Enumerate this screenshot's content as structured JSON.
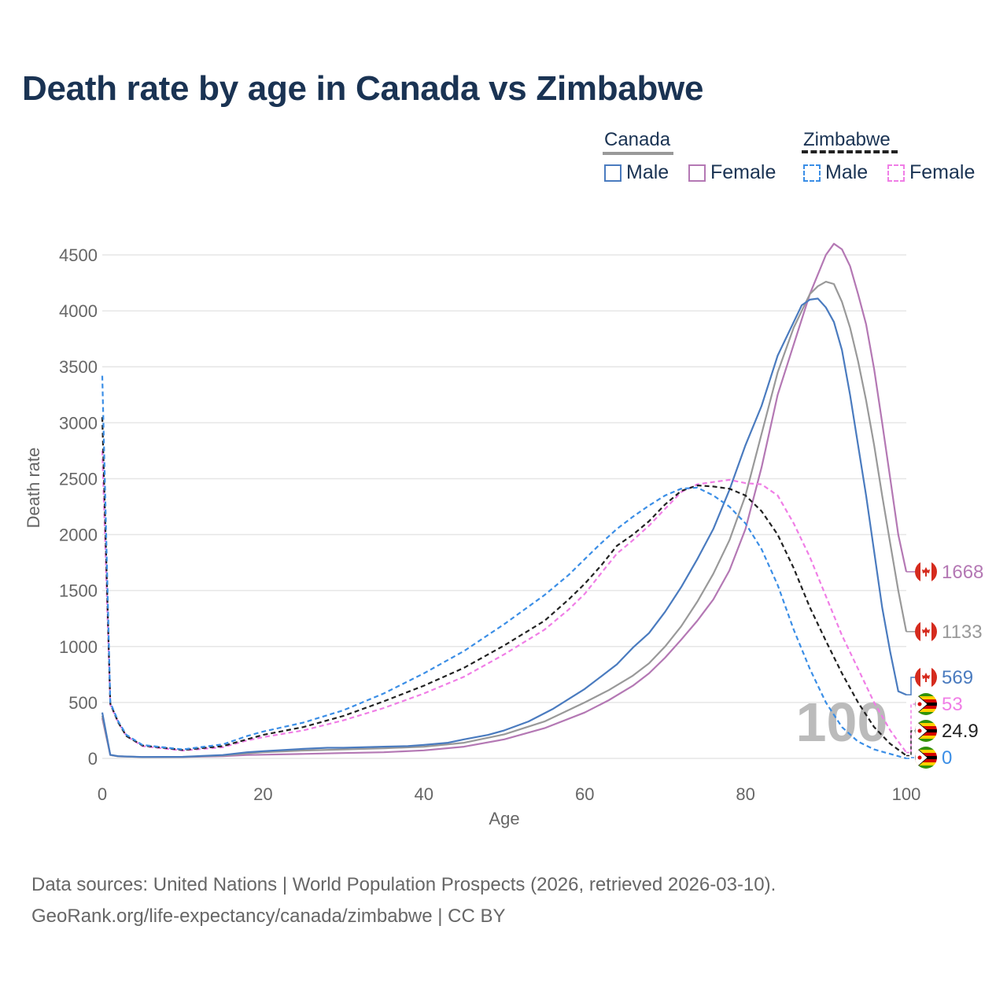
{
  "title": "Death rate by age in Canada vs Zimbabwe",
  "legend": {
    "groups": [
      {
        "name": "Canada",
        "style": "solid",
        "items": [
          {
            "label": "Male",
            "color": "#4a7bbf"
          },
          {
            "label": "Female",
            "color": "#b478b4"
          }
        ]
      },
      {
        "name": "Zimbabwe",
        "style": "dashed",
        "items": [
          {
            "label": "Male",
            "color": "#3b8ee6"
          },
          {
            "label": "Female",
            "color": "#f07ee6"
          }
        ]
      }
    ]
  },
  "source": {
    "line1": "Data sources: United Nations | World Population Prospects (2026, retrieved 2026-03-10).",
    "line2": "GeoRank.org/life-expectancy/canada/zimbabwe | CC BY"
  },
  "chart_data": {
    "type": "line",
    "title": "Death rate by age in Canada vs Zimbabwe",
    "xlabel": "Age",
    "ylabel": "Death rate",
    "xlim": [
      0,
      100
    ],
    "ylim": [
      0,
      4500
    ],
    "xticks": [
      0,
      20,
      40,
      60,
      80,
      100
    ],
    "yticks": [
      0,
      500,
      1000,
      1500,
      2000,
      2500,
      3000,
      3500,
      4000,
      4500
    ],
    "watermark": "100",
    "series": [
      {
        "name": "Canada Female",
        "color": "#b478b4",
        "dash": false,
        "end_label": "1668",
        "flag": "canada",
        "points": [
          [
            0,
            360
          ],
          [
            1,
            30
          ],
          [
            2,
            18
          ],
          [
            5,
            12
          ],
          [
            10,
            12
          ],
          [
            15,
            20
          ],
          [
            18,
            30
          ],
          [
            20,
            33
          ],
          [
            25,
            40
          ],
          [
            30,
            48
          ],
          [
            35,
            55
          ],
          [
            40,
            72
          ],
          [
            45,
            105
          ],
          [
            50,
            170
          ],
          [
            55,
            270
          ],
          [
            60,
            410
          ],
          [
            63,
            520
          ],
          [
            66,
            650
          ],
          [
            68,
            760
          ],
          [
            70,
            900
          ],
          [
            72,
            1060
          ],
          [
            74,
            1230
          ],
          [
            76,
            1420
          ],
          [
            78,
            1680
          ],
          [
            80,
            2050
          ],
          [
            82,
            2600
          ],
          [
            84,
            3250
          ],
          [
            86,
            3700
          ],
          [
            88,
            4150
          ],
          [
            90,
            4500
          ],
          [
            91,
            4600
          ],
          [
            92,
            4550
          ],
          [
            93,
            4400
          ],
          [
            94,
            4150
          ],
          [
            95,
            3880
          ],
          [
            96,
            3480
          ],
          [
            97,
            3000
          ],
          [
            98,
            2500
          ],
          [
            99,
            2000
          ],
          [
            100,
            1668
          ]
        ]
      },
      {
        "name": "Canada Both",
        "color": "#999999",
        "dash": false,
        "end_label": "1133",
        "flag": "canada",
        "points": [
          [
            0,
            380
          ],
          [
            1,
            30
          ],
          [
            2,
            18
          ],
          [
            5,
            12
          ],
          [
            10,
            13
          ],
          [
            15,
            25
          ],
          [
            18,
            45
          ],
          [
            20,
            55
          ],
          [
            25,
            70
          ],
          [
            30,
            80
          ],
          [
            35,
            90
          ],
          [
            40,
            105
          ],
          [
            45,
            140
          ],
          [
            50,
            215
          ],
          [
            55,
            330
          ],
          [
            60,
            500
          ],
          [
            63,
            610
          ],
          [
            66,
            740
          ],
          [
            68,
            850
          ],
          [
            70,
            1000
          ],
          [
            72,
            1180
          ],
          [
            74,
            1400
          ],
          [
            76,
            1650
          ],
          [
            78,
            1950
          ],
          [
            80,
            2350
          ],
          [
            82,
            2900
          ],
          [
            84,
            3450
          ],
          [
            86,
            3850
          ],
          [
            88,
            4150
          ],
          [
            89,
            4220
          ],
          [
            90,
            4260
          ],
          [
            91,
            4240
          ],
          [
            92,
            4080
          ],
          [
            93,
            3850
          ],
          [
            94,
            3550
          ],
          [
            95,
            3200
          ],
          [
            96,
            2800
          ],
          [
            97,
            2350
          ],
          [
            98,
            1920
          ],
          [
            99,
            1500
          ],
          [
            100,
            1133
          ]
        ]
      },
      {
        "name": "Canada Male",
        "color": "#4a7bbf",
        "dash": false,
        "end_label": "569",
        "flag": "canada",
        "points": [
          [
            0,
            410
          ],
          [
            1,
            32
          ],
          [
            2,
            20
          ],
          [
            5,
            13
          ],
          [
            10,
            14
          ],
          [
            15,
            30
          ],
          [
            18,
            55
          ],
          [
            20,
            65
          ],
          [
            25,
            85
          ],
          [
            28,
            95
          ],
          [
            30,
            95
          ],
          [
            35,
            105
          ],
          [
            38,
            110
          ],
          [
            40,
            120
          ],
          [
            43,
            140
          ],
          [
            45,
            170
          ],
          [
            48,
            210
          ],
          [
            50,
            250
          ],
          [
            53,
            330
          ],
          [
            56,
            440
          ],
          [
            58,
            530
          ],
          [
            60,
            620
          ],
          [
            62,
            730
          ],
          [
            64,
            840
          ],
          [
            66,
            990
          ],
          [
            68,
            1120
          ],
          [
            70,
            1310
          ],
          [
            72,
            1530
          ],
          [
            74,
            1780
          ],
          [
            76,
            2050
          ],
          [
            78,
            2400
          ],
          [
            80,
            2800
          ],
          [
            82,
            3150
          ],
          [
            84,
            3600
          ],
          [
            86,
            3900
          ],
          [
            87,
            4050
          ],
          [
            88,
            4100
          ],
          [
            89,
            4110
          ],
          [
            90,
            4030
          ],
          [
            91,
            3900
          ],
          [
            92,
            3650
          ],
          [
            93,
            3250
          ],
          [
            94,
            2800
          ],
          [
            95,
            2350
          ],
          [
            96,
            1850
          ],
          [
            97,
            1350
          ],
          [
            98,
            950
          ],
          [
            99,
            600
          ],
          [
            100,
            569
          ]
        ]
      },
      {
        "name": "Zimbabwe Female",
        "color": "#f07ee6",
        "dash": true,
        "end_label": "53",
        "flag": "zimbabwe",
        "points": [
          [
            0,
            2750
          ],
          [
            1,
            480
          ],
          [
            2,
            320
          ],
          [
            3,
            200
          ],
          [
            5,
            110
          ],
          [
            10,
            70
          ],
          [
            15,
            100
          ],
          [
            18,
            160
          ],
          [
            20,
            190
          ],
          [
            25,
            250
          ],
          [
            30,
            340
          ],
          [
            35,
            450
          ],
          [
            40,
            580
          ],
          [
            45,
            730
          ],
          [
            50,
            930
          ],
          [
            55,
            1150
          ],
          [
            58,
            1330
          ],
          [
            60,
            1470
          ],
          [
            62,
            1650
          ],
          [
            64,
            1830
          ],
          [
            66,
            1950
          ],
          [
            68,
            2080
          ],
          [
            70,
            2230
          ],
          [
            72,
            2380
          ],
          [
            74,
            2450
          ],
          [
            76,
            2470
          ],
          [
            78,
            2490
          ],
          [
            80,
            2460
          ],
          [
            82,
            2450
          ],
          [
            84,
            2350
          ],
          [
            86,
            2100
          ],
          [
            88,
            1800
          ],
          [
            90,
            1450
          ],
          [
            92,
            1100
          ],
          [
            94,
            800
          ],
          [
            96,
            500
          ],
          [
            98,
            250
          ],
          [
            100,
            53
          ]
        ]
      },
      {
        "name": "Zimbabwe Both",
        "color": "#222222",
        "dash": true,
        "end_label": "24.9",
        "flag": "zimbabwe",
        "points": [
          [
            0,
            3050
          ],
          [
            1,
            490
          ],
          [
            2,
            320
          ],
          [
            3,
            200
          ],
          [
            5,
            115
          ],
          [
            10,
            75
          ],
          [
            15,
            110
          ],
          [
            18,
            170
          ],
          [
            20,
            210
          ],
          [
            25,
            280
          ],
          [
            30,
            380
          ],
          [
            35,
            510
          ],
          [
            40,
            650
          ],
          [
            45,
            810
          ],
          [
            50,
            1010
          ],
          [
            55,
            1230
          ],
          [
            58,
            1420
          ],
          [
            60,
            1560
          ],
          [
            62,
            1720
          ],
          [
            64,
            1900
          ],
          [
            66,
            2000
          ],
          [
            68,
            2120
          ],
          [
            70,
            2270
          ],
          [
            72,
            2390
          ],
          [
            74,
            2440
          ],
          [
            76,
            2430
          ],
          [
            78,
            2410
          ],
          [
            80,
            2350
          ],
          [
            82,
            2210
          ],
          [
            84,
            2000
          ],
          [
            86,
            1700
          ],
          [
            88,
            1350
          ],
          [
            90,
            1050
          ],
          [
            92,
            760
          ],
          [
            94,
            500
          ],
          [
            96,
            280
          ],
          [
            98,
            130
          ],
          [
            100,
            25
          ]
        ]
      },
      {
        "name": "Zimbabwe Male",
        "color": "#3b8ee6",
        "dash": true,
        "end_label": "0",
        "flag": "zimbabwe",
        "points": [
          [
            0,
            3420
          ],
          [
            1,
            500
          ],
          [
            2,
            330
          ],
          [
            3,
            210
          ],
          [
            5,
            120
          ],
          [
            10,
            80
          ],
          [
            15,
            125
          ],
          [
            18,
            200
          ],
          [
            20,
            240
          ],
          [
            25,
            320
          ],
          [
            30,
            430
          ],
          [
            35,
            580
          ],
          [
            40,
            760
          ],
          [
            45,
            960
          ],
          [
            50,
            1200
          ],
          [
            55,
            1460
          ],
          [
            58,
            1640
          ],
          [
            60,
            1780
          ],
          [
            62,
            1920
          ],
          [
            64,
            2050
          ],
          [
            66,
            2160
          ],
          [
            68,
            2260
          ],
          [
            70,
            2350
          ],
          [
            72,
            2410
          ],
          [
            74,
            2420
          ],
          [
            76,
            2350
          ],
          [
            78,
            2250
          ],
          [
            80,
            2100
          ],
          [
            82,
            1870
          ],
          [
            84,
            1550
          ],
          [
            86,
            1150
          ],
          [
            88,
            800
          ],
          [
            90,
            500
          ],
          [
            92,
            280
          ],
          [
            94,
            150
          ],
          [
            96,
            80
          ],
          [
            98,
            40
          ],
          [
            100,
            0
          ]
        ]
      }
    ]
  }
}
